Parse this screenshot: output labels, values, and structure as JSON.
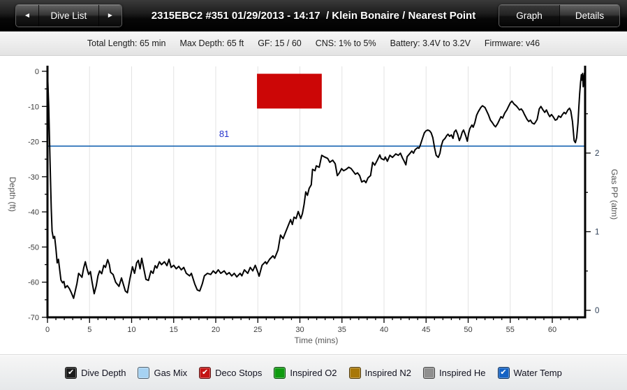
{
  "top_bar": {
    "prev_icon": "◄",
    "next_icon": "►",
    "dive_list_label": "Dive List",
    "title": "2315EBC2 #351 01/29/2013 - 14:17  / Klein Bonaire / Nearest Point",
    "graph_label": "Graph",
    "details_label": "Details"
  },
  "info_bar": {
    "items": [
      "Total Length: 65 min",
      "Max Depth: 65 ft",
      "GF: 15 / 60",
      "CNS: 1% to 5%",
      "Battery: 3.4V to 3.2V",
      "Firmware: v46"
    ]
  },
  "chart_data": {
    "type": "line",
    "title": "",
    "xlabel": "Time (mins)",
    "ylabel": "Depth (ft)",
    "y2label": "Gas PP (atm)",
    "xlim": [
      0,
      63.9
    ],
    "ylim": [
      -70,
      0
    ],
    "y2lim": [
      0,
      3
    ],
    "x_tick_major": 5,
    "x_tick_minor": 1,
    "y_tick_major": 10,
    "y_tick_minor": 5,
    "y2_ticks": [
      0,
      1,
      2
    ],
    "y2_tick_minor": 0.5,
    "grid": "vertical",
    "legend_position": "bottom",
    "axis_color": "#000000",
    "grid_color": "#e3e3e3",
    "tick_label_color": "#3c3c3c",
    "y2_label_color": "#2e4057",
    "axis_title_color": "#555555",
    "water_temp_line": {
      "value_f": 81,
      "label": "81",
      "depth_equiv": -21.3,
      "label_t": 21.0,
      "color": "#1b67b4",
      "label_color": "#2433cc"
    },
    "deco_stops": {
      "t_start": 24.9,
      "t_end": 32.6,
      "top_ft": -0.7,
      "bottom_ft": -10.6,
      "color": "#cc0606"
    },
    "series": [
      {
        "name": "Dive Depth",
        "color": "#000000",
        "points": [
          [
            0,
            0
          ],
          [
            0.15,
            -10
          ],
          [
            0.3,
            -25
          ],
          [
            0.45,
            -39
          ],
          [
            0.55,
            -45.5
          ],
          [
            0.7,
            -47.5
          ],
          [
            0.85,
            -47
          ],
          [
            1.0,
            -50.5
          ],
          [
            1.15,
            -54.5
          ],
          [
            1.3,
            -53.5
          ],
          [
            1.45,
            -56.5
          ],
          [
            1.6,
            -59.4
          ],
          [
            1.8,
            -60.2
          ],
          [
            1.95,
            -59.8
          ],
          [
            2.1,
            -61.6
          ],
          [
            2.35,
            -61.0
          ],
          [
            2.6,
            -61.8
          ],
          [
            2.8,
            -62.8
          ],
          [
            3.1,
            -64.6
          ],
          [
            3.3,
            -62.5
          ],
          [
            3.5,
            -60.4
          ],
          [
            3.7,
            -57.5
          ],
          [
            3.9,
            -58.0
          ],
          [
            4.1,
            -58.6
          ],
          [
            4.3,
            -56.0
          ],
          [
            4.5,
            -54.2
          ],
          [
            4.7,
            -56.2
          ],
          [
            4.9,
            -57.8
          ],
          [
            5.1,
            -57.0
          ],
          [
            5.3,
            -60.0
          ],
          [
            5.55,
            -63.3
          ],
          [
            5.8,
            -61.0
          ],
          [
            6.0,
            -58.2
          ],
          [
            6.2,
            -56.8
          ],
          [
            6.45,
            -57.6
          ],
          [
            6.7,
            -55.2
          ],
          [
            6.9,
            -55.8
          ],
          [
            7.15,
            -53.6
          ],
          [
            7.35,
            -55.0
          ],
          [
            7.5,
            -57.2
          ],
          [
            7.8,
            -57.8
          ],
          [
            8.1,
            -60.0
          ],
          [
            8.5,
            -61.2
          ],
          [
            8.8,
            -58.8
          ],
          [
            9.0,
            -60.5
          ],
          [
            9.25,
            -62.5
          ],
          [
            9.5,
            -63.0
          ],
          [
            9.8,
            -59.0
          ],
          [
            10.1,
            -55.6
          ],
          [
            10.35,
            -57.5
          ],
          [
            10.6,
            -54.5
          ],
          [
            10.8,
            -53.8
          ],
          [
            11.0,
            -56.2
          ],
          [
            11.2,
            -53.2
          ],
          [
            11.45,
            -56.2
          ],
          [
            11.7,
            -59.2
          ],
          [
            12.0,
            -59.5
          ],
          [
            12.3,
            -56.8
          ],
          [
            12.55,
            -57.5
          ],
          [
            12.8,
            -55.3
          ],
          [
            13.0,
            -56.0
          ],
          [
            13.3,
            -54.2
          ],
          [
            13.55,
            -55.0
          ],
          [
            13.9,
            -54.2
          ],
          [
            14.2,
            -55.3
          ],
          [
            14.45,
            -53.5
          ],
          [
            14.7,
            -55.8
          ],
          [
            15.0,
            -55.2
          ],
          [
            15.3,
            -56.2
          ],
          [
            15.6,
            -55.5
          ],
          [
            15.9,
            -56.5
          ],
          [
            16.2,
            -55.8
          ],
          [
            16.5,
            -57.5
          ],
          [
            16.9,
            -58.2
          ],
          [
            17.1,
            -57.5
          ],
          [
            17.5,
            -60.5
          ],
          [
            17.8,
            -62.2
          ],
          [
            18.1,
            -62.5
          ],
          [
            18.4,
            -60.5
          ],
          [
            18.65,
            -58.2
          ],
          [
            19.0,
            -57.5
          ],
          [
            19.4,
            -57.8
          ],
          [
            19.7,
            -56.8
          ],
          [
            20.0,
            -57.5
          ],
          [
            20.3,
            -56.5
          ],
          [
            20.6,
            -57.5
          ],
          [
            21.0,
            -56.8
          ],
          [
            21.3,
            -57.8
          ],
          [
            21.6,
            -57.3
          ],
          [
            21.9,
            -58.2
          ],
          [
            22.2,
            -57.5
          ],
          [
            22.5,
            -58.5
          ],
          [
            22.9,
            -57.5
          ],
          [
            23.1,
            -58.2
          ],
          [
            23.4,
            -56.5
          ],
          [
            23.8,
            -57.5
          ],
          [
            24.1,
            -55.8
          ],
          [
            24.4,
            -56.8
          ],
          [
            24.7,
            -55.2
          ],
          [
            25.0,
            -57.2
          ],
          [
            25.15,
            -58.3
          ],
          [
            25.5,
            -55.2
          ],
          [
            25.9,
            -54.2
          ],
          [
            26.05,
            -54.8
          ],
          [
            26.4,
            -53.5
          ],
          [
            26.8,
            -52.5
          ],
          [
            27.0,
            -53.2
          ],
          [
            27.4,
            -50.8
          ],
          [
            27.7,
            -46.6
          ],
          [
            28.0,
            -47.6
          ],
          [
            28.3,
            -45.8
          ],
          [
            28.5,
            -44.6
          ],
          [
            28.9,
            -42.2
          ],
          [
            29.1,
            -43.6
          ],
          [
            29.3,
            -41.5
          ],
          [
            29.55,
            -41.9
          ],
          [
            29.8,
            -39.9
          ],
          [
            30.1,
            -41.9
          ],
          [
            30.3,
            -40.5
          ],
          [
            30.5,
            -37.9
          ],
          [
            30.7,
            -34.3
          ],
          [
            30.9,
            -35.3
          ],
          [
            31.1,
            -33.3
          ],
          [
            31.35,
            -32.3
          ],
          [
            31.5,
            -27.9
          ],
          [
            31.8,
            -28.3
          ],
          [
            31.95,
            -26.9
          ],
          [
            32.3,
            -27.3
          ],
          [
            32.6,
            -23.9
          ],
          [
            32.95,
            -24.4
          ],
          [
            33.3,
            -24.8
          ],
          [
            33.55,
            -25.9
          ],
          [
            33.9,
            -25.3
          ],
          [
            34.2,
            -26.3
          ],
          [
            34.45,
            -29.7
          ],
          [
            34.7,
            -28.9
          ],
          [
            34.95,
            -27.7
          ],
          [
            35.2,
            -28.3
          ],
          [
            35.5,
            -27.9
          ],
          [
            35.8,
            -27.3
          ],
          [
            36.1,
            -27.7
          ],
          [
            36.35,
            -28.5
          ],
          [
            36.6,
            -29.3
          ],
          [
            36.85,
            -28.9
          ],
          [
            37.1,
            -29.7
          ],
          [
            37.35,
            -31.5
          ],
          [
            37.65,
            -31.1
          ],
          [
            37.85,
            -31.7
          ],
          [
            38.1,
            -30.3
          ],
          [
            38.4,
            -29.7
          ],
          [
            38.65,
            -25.9
          ],
          [
            38.9,
            -26.7
          ],
          [
            39.2,
            -25.3
          ],
          [
            39.5,
            -23.8
          ],
          [
            39.65,
            -24.8
          ],
          [
            40.0,
            -25.2
          ],
          [
            40.15,
            -24.4
          ],
          [
            40.4,
            -25.6
          ],
          [
            40.7,
            -23.9
          ],
          [
            41.0,
            -24.5
          ],
          [
            41.4,
            -23.5
          ],
          [
            41.7,
            -23.9
          ],
          [
            41.95,
            -23.3
          ],
          [
            42.2,
            -24.7
          ],
          [
            42.4,
            -25.6
          ],
          [
            42.6,
            -26.6
          ],
          [
            42.75,
            -24.3
          ],
          [
            43.1,
            -23.3
          ],
          [
            43.3,
            -22.7
          ],
          [
            43.5,
            -23.3
          ],
          [
            43.7,
            -22.3
          ],
          [
            44.0,
            -21.7
          ],
          [
            44.15,
            -21.9
          ],
          [
            44.3,
            -21.1
          ],
          [
            44.6,
            -18.9
          ],
          [
            44.8,
            -17.5
          ],
          [
            45.0,
            -16.9
          ],
          [
            45.2,
            -16.7
          ],
          [
            45.4,
            -16.9
          ],
          [
            45.6,
            -17.5
          ],
          [
            45.8,
            -18.9
          ],
          [
            46.0,
            -21.7
          ],
          [
            46.2,
            -23.9
          ],
          [
            46.45,
            -24.5
          ],
          [
            46.65,
            -23.3
          ],
          [
            46.8,
            -21.3
          ],
          [
            47.0,
            -19.7
          ],
          [
            47.25,
            -19.1
          ],
          [
            47.45,
            -18.3
          ],
          [
            47.6,
            -17.9
          ],
          [
            47.8,
            -18.5
          ],
          [
            48.0,
            -18.1
          ],
          [
            48.2,
            -19.1
          ],
          [
            48.35,
            -17.3
          ],
          [
            48.55,
            -16.7
          ],
          [
            48.75,
            -17.9
          ],
          [
            48.95,
            -19.7
          ],
          [
            49.1,
            -18.9
          ],
          [
            49.3,
            -17.3
          ],
          [
            49.45,
            -16.7
          ],
          [
            49.7,
            -18.3
          ],
          [
            49.9,
            -19.9
          ],
          [
            50.05,
            -17.7
          ],
          [
            50.2,
            -16.3
          ],
          [
            50.45,
            -15.3
          ],
          [
            50.6,
            -15.9
          ],
          [
            50.8,
            -14.6
          ],
          [
            51.0,
            -12.5
          ],
          [
            51.2,
            -11.5
          ],
          [
            51.5,
            -10.3
          ],
          [
            51.7,
            -9.8
          ],
          [
            52.0,
            -10.3
          ],
          [
            52.2,
            -11.3
          ],
          [
            52.4,
            -12.3
          ],
          [
            52.65,
            -13.9
          ],
          [
            52.9,
            -14.7
          ],
          [
            53.05,
            -15.3
          ],
          [
            53.25,
            -15.8
          ],
          [
            53.5,
            -14.9
          ],
          [
            53.7,
            -13.9
          ],
          [
            53.9,
            -12.9
          ],
          [
            54.1,
            -13.3
          ],
          [
            54.35,
            -11.9
          ],
          [
            54.6,
            -11.0
          ],
          [
            54.8,
            -10.0
          ],
          [
            55.0,
            -9.0
          ],
          [
            55.2,
            -8.5
          ],
          [
            55.45,
            -9.3
          ],
          [
            55.7,
            -9.8
          ],
          [
            55.85,
            -10.2
          ],
          [
            56.1,
            -11.0
          ],
          [
            56.3,
            -10.7
          ],
          [
            56.5,
            -11.3
          ],
          [
            56.7,
            -12.3
          ],
          [
            57.0,
            -13.7
          ],
          [
            57.2,
            -14.3
          ],
          [
            57.4,
            -13.9
          ],
          [
            57.6,
            -14.7
          ],
          [
            57.85,
            -15.0
          ],
          [
            58.05,
            -14.3
          ],
          [
            58.2,
            -13.7
          ],
          [
            58.45,
            -10.7
          ],
          [
            58.65,
            -10.0
          ],
          [
            58.9,
            -11.0
          ],
          [
            59.1,
            -11.7
          ],
          [
            59.3,
            -11.0
          ],
          [
            59.55,
            -12.3
          ],
          [
            59.7,
            -12.9
          ],
          [
            59.9,
            -12.3
          ],
          [
            60.1,
            -12.9
          ],
          [
            60.35,
            -13.9
          ],
          [
            60.55,
            -13.7
          ],
          [
            60.75,
            -12.7
          ],
          [
            61.0,
            -13.1
          ],
          [
            61.2,
            -12.3
          ],
          [
            61.4,
            -11.7
          ],
          [
            61.6,
            -12.1
          ],
          [
            61.85,
            -11.0
          ],
          [
            62.05,
            -10.5
          ],
          [
            62.2,
            -11.3
          ],
          [
            62.4,
            -14.3
          ],
          [
            62.6,
            -19.7
          ],
          [
            62.75,
            -20.3
          ],
          [
            62.9,
            -18.9
          ],
          [
            63.05,
            -14.7
          ],
          [
            63.15,
            -10.3
          ],
          [
            63.25,
            -6.4
          ],
          [
            63.35,
            -3.4
          ],
          [
            63.45,
            -1.0
          ],
          [
            63.52,
            -2.5
          ],
          [
            63.6,
            -0.6
          ],
          [
            63.68,
            -4.4
          ],
          [
            63.76,
            -1.5
          ],
          [
            63.83,
            -0.5
          ],
          [
            63.88,
            -0.2
          ]
        ]
      }
    ]
  },
  "legend": {
    "check_icon": "✔",
    "items": [
      {
        "label": "Dive Depth",
        "color": "#1b1b1b",
        "checked": true
      },
      {
        "label": "Gas Mix",
        "color": "#a6d2f2",
        "checked": false
      },
      {
        "label": "Deco Stops",
        "color": "#c41414",
        "checked": true
      },
      {
        "label": "Inspired O2",
        "color": "#0f9b10",
        "checked": false
      },
      {
        "label": "Inspired N2",
        "color": "#a87708",
        "checked": false
      },
      {
        "label": "Inspired He",
        "color": "#8f8f8f",
        "checked": false
      },
      {
        "label": "Water Temp",
        "color": "#1563c5",
        "checked": true
      }
    ]
  }
}
